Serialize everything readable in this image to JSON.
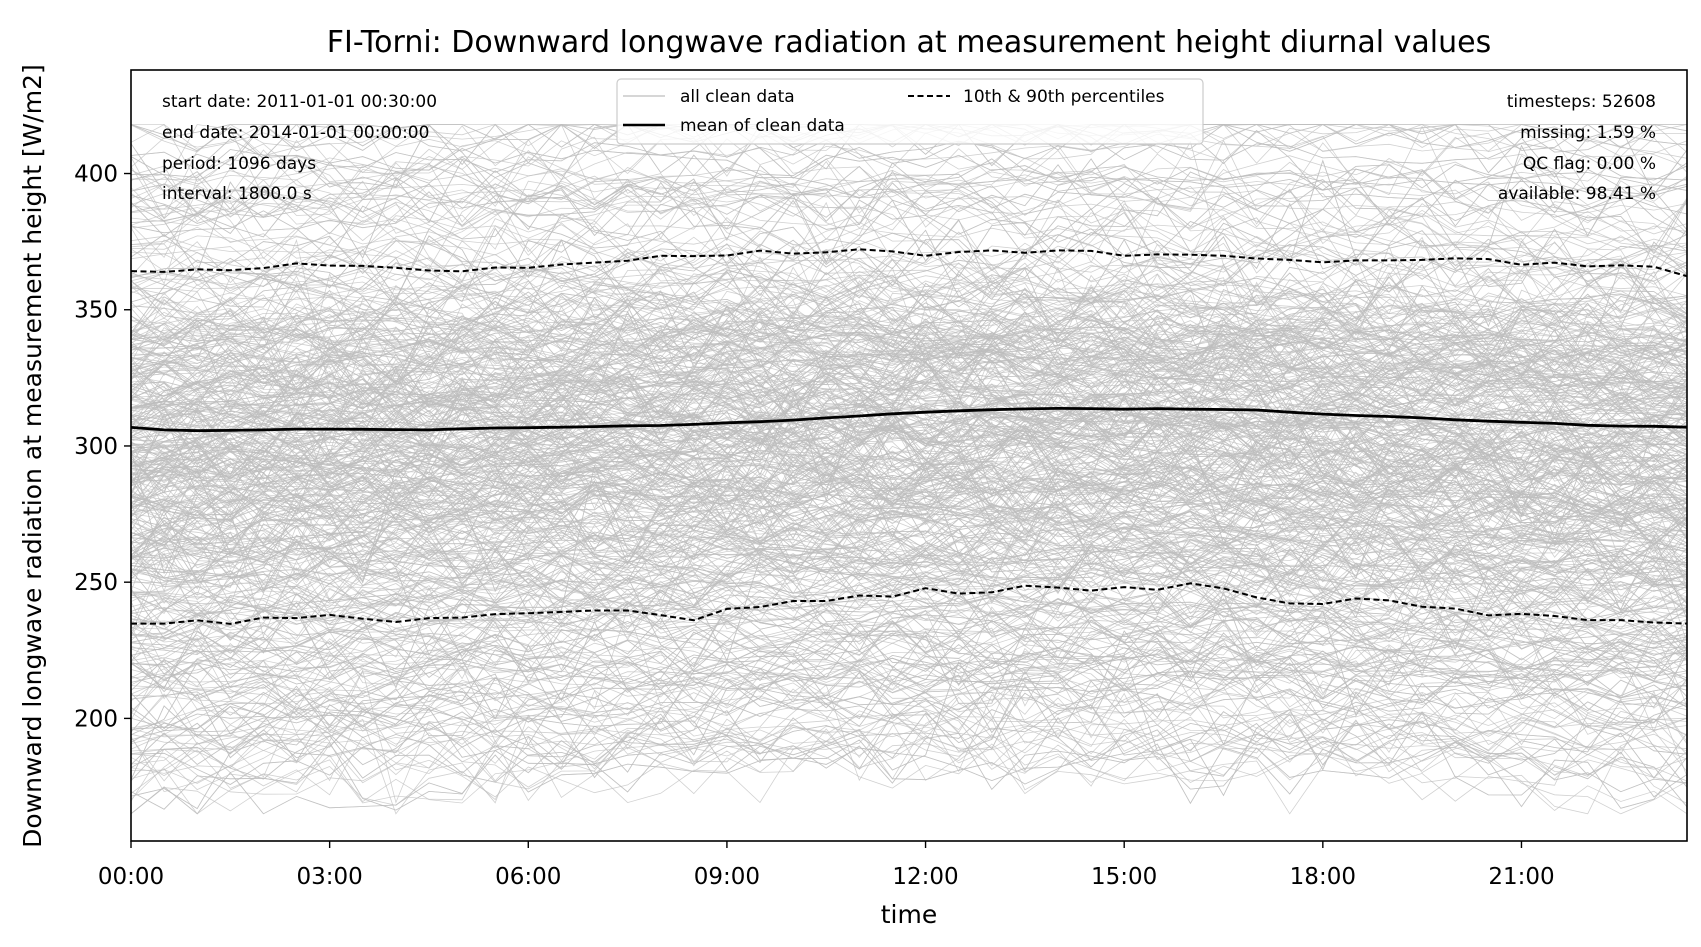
{
  "chart_data": {
    "type": "line",
    "title": "FI-Torni: Downward longwave radiation at measurement height diurnal values",
    "xlabel": "time",
    "ylabel": "Downward longwave radiation at measurement height [W/m2]",
    "x_ticks": [
      "00:00",
      "03:00",
      "06:00",
      "09:00",
      "12:00",
      "15:00",
      "18:00",
      "21:00"
    ],
    "y_ticks": [
      200,
      250,
      300,
      350,
      400
    ],
    "xlim_hours": [
      0,
      23.5
    ],
    "ylim": [
      155,
      438
    ],
    "grid": false,
    "legend_position": "top-center",
    "legend": {
      "all": "all clean data",
      "mean": "mean of clean data",
      "pct": "10th & 90th percentiles"
    },
    "info_left": [
      "start date: 2011-01-01 00:30:00",
      "end date: 2014-01-01 00:00:00",
      "period: 1096 days",
      "interval: 1800.0 s"
    ],
    "info_right": [
      "timesteps: 52608",
      "missing: 1.59 %",
      "QC flag: 0.00 %",
      "available: 98.41 %"
    ],
    "x_hours": [
      0,
      0.5,
      1,
      1.5,
      2,
      2.5,
      3,
      3.5,
      4,
      4.5,
      5,
      5.5,
      6,
      6.5,
      7,
      7.5,
      8,
      8.5,
      9,
      9.5,
      10,
      10.5,
      11,
      11.5,
      12,
      12.5,
      13,
      13.5,
      14,
      14.5,
      15,
      15.5,
      16,
      16.5,
      17,
      17.5,
      18,
      18.5,
      19,
      19.5,
      20,
      20.5,
      21,
      21.5,
      22,
      22.5,
      23,
      23.5
    ],
    "series": [
      {
        "name": "mean of clean data",
        "style": "solid",
        "color": "#000000",
        "values": [
          306.8,
          305.9,
          305.6,
          305.7,
          305.9,
          306.2,
          306.2,
          306.1,
          306.0,
          305.9,
          306.3,
          306.6,
          306.7,
          306.9,
          307.1,
          307.4,
          307.5,
          307.9,
          308.5,
          308.9,
          309.5,
          310.3,
          311.0,
          311.8,
          312.4,
          312.9,
          313.3,
          313.6,
          313.8,
          313.7,
          313.5,
          313.7,
          313.5,
          313.4,
          313.2,
          312.4,
          311.7,
          311.2,
          310.8,
          310.3,
          309.6,
          309.1,
          308.7,
          308.3,
          307.6,
          307.3,
          307.2,
          306.9
        ]
      },
      {
        "name": "90th percentile",
        "style": "dashed",
        "color": "#000000",
        "values": [
          364.2,
          363.9,
          364.8,
          364.5,
          365.3,
          367.0,
          366.2,
          366.1,
          365.4,
          364.4,
          364.1,
          365.5,
          365.4,
          366.6,
          367.3,
          368.0,
          369.8,
          369.7,
          369.9,
          371.7,
          370.6,
          371.1,
          372.2,
          371.4,
          369.8,
          371.2,
          371.8,
          370.9,
          371.8,
          371.6,
          369.8,
          370.3,
          370.2,
          369.8,
          368.8,
          368.3,
          367.4,
          368.1,
          368.1,
          368.3,
          368.9,
          368.6,
          366.5,
          367.3,
          365.9,
          366.3,
          365.8,
          362.3
        ]
      },
      {
        "name": "10th percentile",
        "style": "dashed",
        "color": "#000000",
        "values": [
          234.8,
          234.8,
          236.0,
          234.7,
          237.0,
          236.8,
          238.0,
          236.6,
          235.4,
          236.8,
          237.0,
          238.3,
          238.6,
          239.1,
          239.6,
          239.6,
          237.9,
          236.0,
          240.2,
          240.9,
          243.1,
          243.1,
          245.1,
          244.7,
          247.8,
          245.8,
          246.3,
          248.7,
          248.0,
          246.9,
          248.2,
          247.2,
          249.6,
          247.7,
          244.4,
          242.2,
          242.0,
          244.0,
          243.3,
          241.0,
          240.3,
          237.8,
          238.4,
          237.6,
          236.1,
          236.1,
          235.2,
          234.8
        ]
      }
    ],
    "background_lines": {
      "name": "all clean data",
      "color": "#bdbdbd",
      "count": 1096,
      "description_of_distribution": "roughly 170 to 415 W/m2 across all hours, densest between 240 and 370"
    }
  }
}
